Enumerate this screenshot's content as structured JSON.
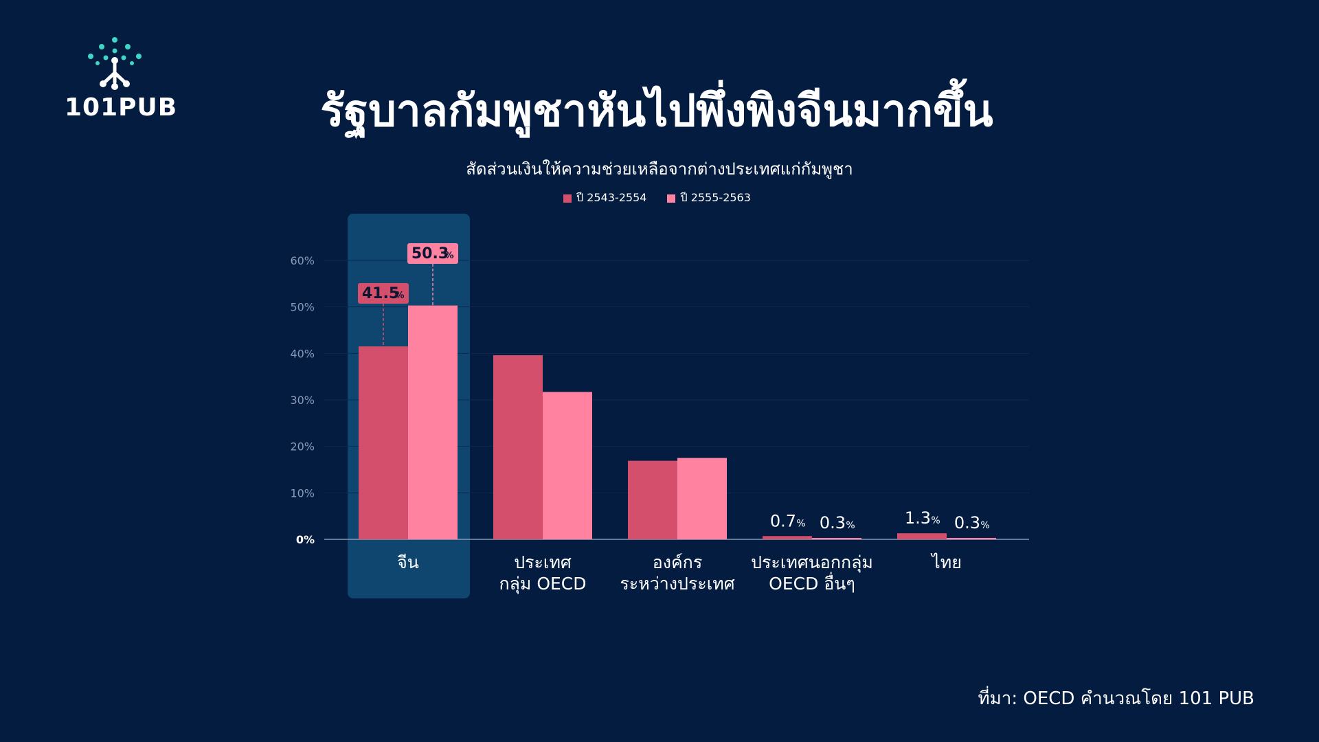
{
  "brand": {
    "name": "101PUB"
  },
  "title": "รัฐบาลกัมพูชาหันไปพึ่งพิงจีนมากขึ้น",
  "subtitle": "สัดส่วนเงินให้ความช่วยเหลือจากต่างประเทศแก่กัมพูชา",
  "source": "ที่มา: OECD คำนวณโดย 101 PUB",
  "colors": {
    "background": "#031c40",
    "series1": "#d44f6c",
    "series2": "#ff83a0",
    "highlight": "#0e4670",
    "logo_accent": "#3fd6c8"
  },
  "chart_data": {
    "type": "bar",
    "categories": [
      [
        "จีน"
      ],
      [
        "ประเทศ",
        "กลุ่ม OECD"
      ],
      [
        "องค์กร",
        "ระหว่างประเทศ"
      ],
      [
        "ประเทศนอกกลุ่ม",
        "OECD อื่นๆ"
      ],
      [
        "ไทย"
      ]
    ],
    "series": [
      {
        "name": "ปี 2543-2554",
        "values": [
          41.5,
          39.6,
          16.9,
          0.7,
          1.3
        ]
      },
      {
        "name": "ปี 2555-2563",
        "values": [
          50.3,
          31.7,
          17.5,
          0.3,
          0.3
        ]
      }
    ],
    "labels": [
      [
        "41.5",
        "50.3"
      ],
      [
        null,
        null
      ],
      [
        null,
        null
      ],
      [
        "0.7",
        "0.3"
      ],
      [
        "1.3",
        "0.3"
      ]
    ],
    "label_unit": "%",
    "yticks": [
      "0%",
      "10%",
      "20%",
      "30%",
      "40%",
      "50%",
      "60%"
    ],
    "ylim": [
      0,
      60
    ],
    "grid": true,
    "highlight_category": 0,
    "legend_position": "top-center"
  }
}
